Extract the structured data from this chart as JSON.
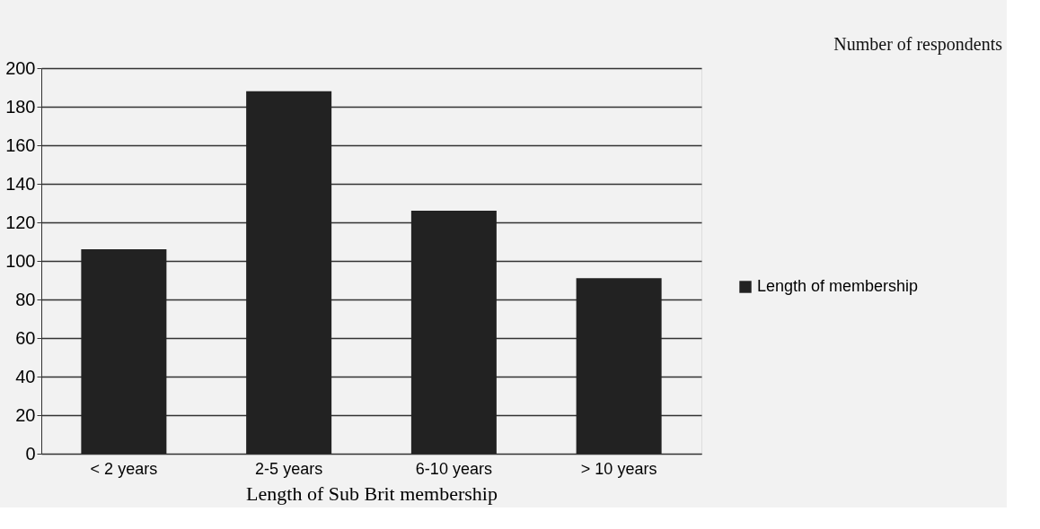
{
  "chart_data": {
    "type": "bar",
    "annotations": [
      "Number of respondents"
    ],
    "xlabel": "Length of Sub Brit membership",
    "categories": [
      "< 2 years",
      "2-5 years",
      "6-10 years",
      "> 10 years"
    ],
    "series": [
      {
        "name": "Length of membership",
        "color": "#222222",
        "values": [
          106,
          188,
          126,
          91
        ]
      }
    ],
    "ylim": [
      0,
      200
    ],
    "yticks": [
      0,
      20,
      40,
      60,
      80,
      100,
      120,
      140,
      160,
      180,
      200
    ],
    "grid": "y",
    "legend": "right"
  }
}
